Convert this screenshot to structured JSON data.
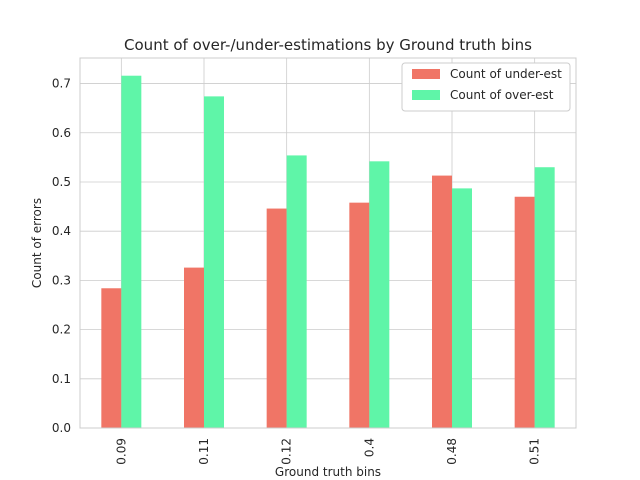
{
  "chart_data": {
    "type": "bar",
    "title": "Count of over-/under-estimations by Ground truth bins",
    "xlabel": "Ground truth bins",
    "ylabel": "Count of errors",
    "categories": [
      "0.09",
      "0.11",
      "0.12",
      "0.4",
      "0.48",
      "0.51"
    ],
    "series": [
      {
        "name": "Count of under-est",
        "color": "#f07566",
        "values": [
          0.284,
          0.326,
          0.446,
          0.458,
          0.513,
          0.47
        ]
      },
      {
        "name": "Count of over-est",
        "color": "#5ff5a8",
        "values": [
          0.716,
          0.674,
          0.554,
          0.542,
          0.487,
          0.53
        ]
      }
    ],
    "ylim": [
      0,
      0.752
    ],
    "yticks": [
      "0.0",
      "0.1",
      "0.2",
      "0.3",
      "0.4",
      "0.5",
      "0.6",
      "0.7"
    ],
    "grid": true,
    "legend_position": "top-right"
  }
}
